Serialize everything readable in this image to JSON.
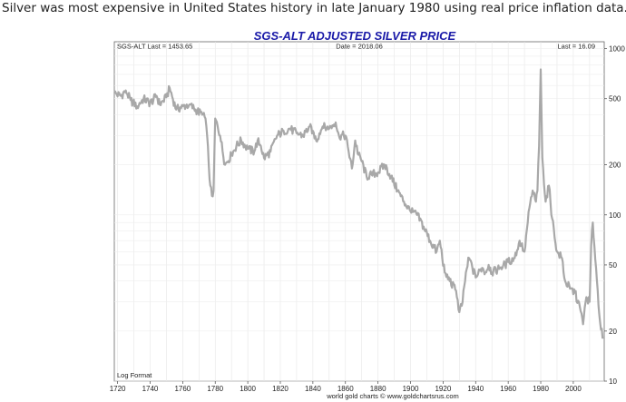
{
  "caption": "Silver was most expensive in United States history in late January 1980 using real price inflation data.",
  "chart_data": {
    "type": "line",
    "title": "SGS-ALT ADJUSTED  SILVER PRICE",
    "header_left": "SGS-ALT Last = 1453.65",
    "header_center": "Date = 2018.06",
    "header_right": "Last = 16.09",
    "scale_note": "Log Format",
    "credit": "world gold charts © www.goldchartsrus.com",
    "y_scale": "log",
    "ylim": [
      10,
      1100
    ],
    "xlim": [
      1718,
      2019
    ],
    "x_ticks": [
      1720,
      1740,
      1760,
      1780,
      1800,
      1820,
      1840,
      1860,
      1880,
      1900,
      1920,
      1940,
      1960,
      1980,
      2000
    ],
    "y_ticks": [
      10,
      20,
      50,
      100,
      200,
      500,
      1000
    ],
    "grid": true,
    "line_color": "#a8a8a8",
    "series": [
      {
        "x": [
          1718,
          1722,
          1725,
          1728,
          1732,
          1736,
          1740,
          1744,
          1746,
          1750,
          1752,
          1756,
          1760,
          1764,
          1768,
          1772,
          1774,
          1775,
          1776,
          1777,
          1778,
          1779,
          1780,
          1783,
          1786,
          1790,
          1793,
          1796,
          1800,
          1804,
          1806,
          1808,
          1810,
          1814,
          1818,
          1822,
          1826,
          1830,
          1834,
          1838,
          1840,
          1842,
          1846,
          1850,
          1854,
          1856,
          1860,
          1862,
          1864,
          1866,
          1868,
          1870,
          1873,
          1876,
          1880,
          1884,
          1888,
          1892,
          1896,
          1900,
          1904,
          1908,
          1912,
          1916,
          1918,
          1921,
          1924,
          1928,
          1930,
          1932,
          1934,
          1936,
          1940,
          1944,
          1946,
          1948,
          1950,
          1955,
          1960,
          1964,
          1967,
          1970,
          1973,
          1975,
          1977,
          1978,
          1979,
          1980,
          1981,
          1983,
          1985,
          1987,
          1990,
          1993,
          1995,
          1998,
          2001,
          2004,
          2006,
          2008,
          2010,
          2011,
          2012,
          2014,
          2016,
          2018
        ],
        "y": [
          540,
          520,
          560,
          490,
          450,
          500,
          470,
          520,
          460,
          510,
          580,
          430,
          450,
          460,
          430,
          400,
          380,
          300,
          200,
          150,
          130,
          140,
          380,
          300,
          200,
          230,
          260,
          280,
          250,
          240,
          280,
          260,
          220,
          240,
          300,
          320,
          330,
          310,
          300,
          340,
          320,
          280,
          340,
          330,
          360,
          300,
          300,
          240,
          190,
          280,
          230,
          210,
          170,
          175,
          180,
          200,
          170,
          140,
          120,
          105,
          100,
          85,
          70,
          60,
          70,
          45,
          40,
          35,
          26,
          30,
          45,
          55,
          42,
          48,
          45,
          50,
          45,
          48,
          52,
          55,
          70,
          60,
          110,
          140,
          120,
          140,
          260,
          750,
          220,
          120,
          150,
          95,
          60,
          55,
          40,
          36,
          34,
          28,
          22,
          32,
          30,
          65,
          90,
          48,
          25,
          18
        ]
      }
    ]
  }
}
